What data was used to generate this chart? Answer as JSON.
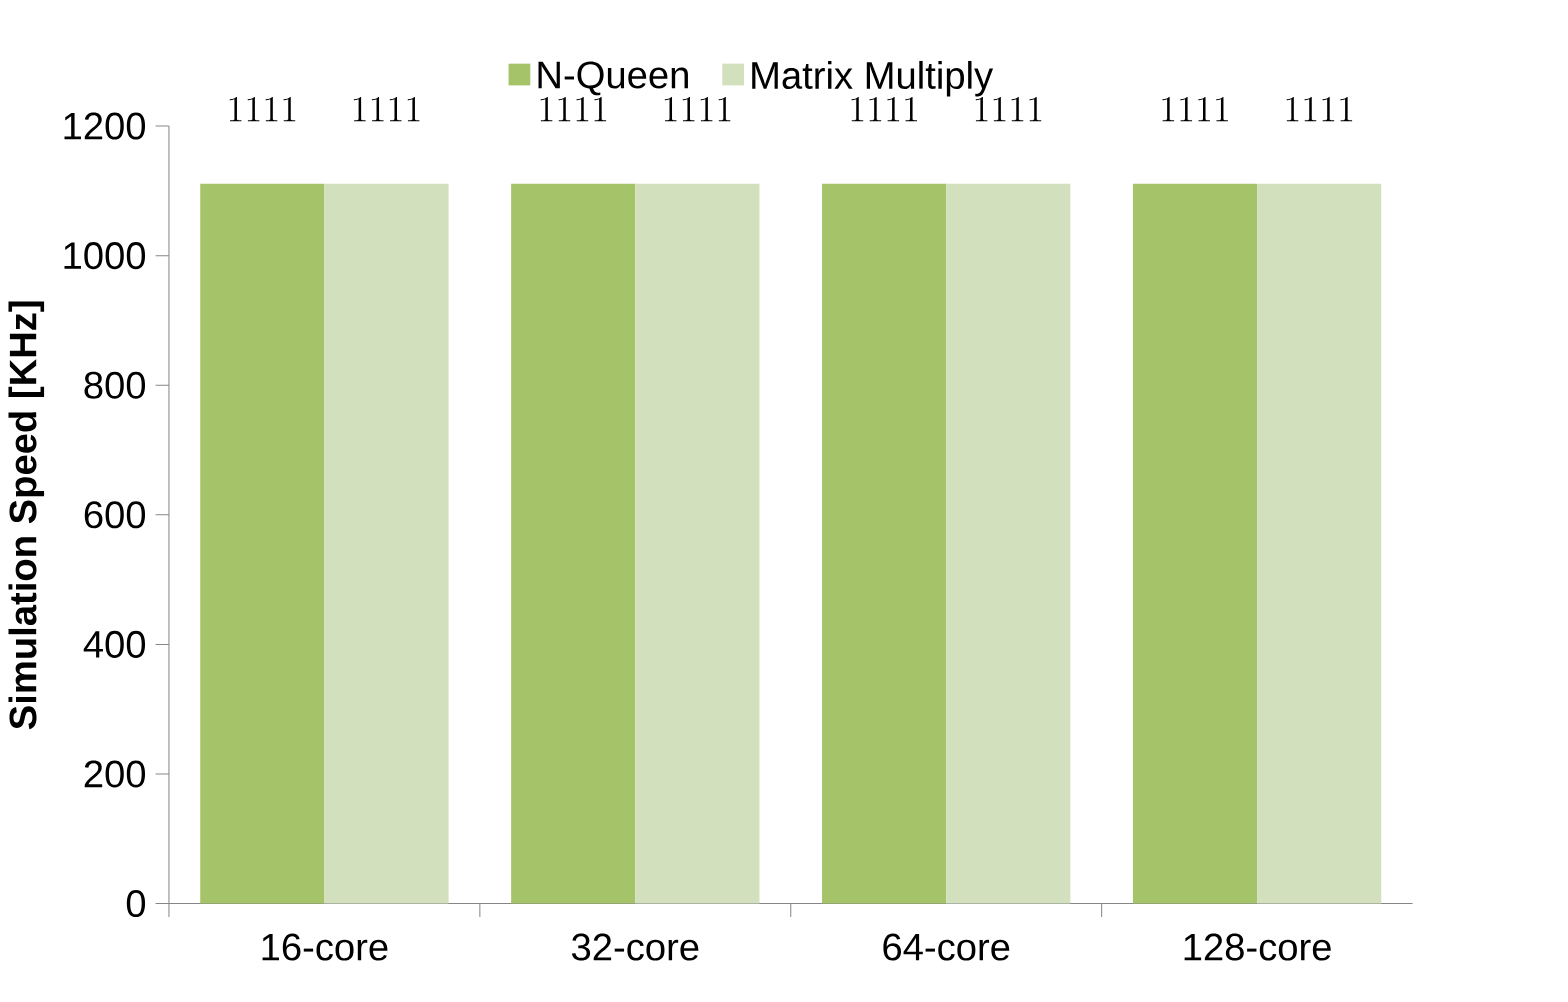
{
  "chart_data": {
    "type": "bar",
    "ylabel": "Simulation Speed [KHz]",
    "categories": [
      "16-core",
      "32-core",
      "64-core",
      "128-core"
    ],
    "series": [
      {
        "name": "N-Queen",
        "color": "#a5c469",
        "values": [
          1111,
          1111,
          1111,
          1111
        ]
      },
      {
        "name": "Matrix Multiply",
        "color": "#d3e0bd",
        "values": [
          1111,
          1111,
          1111,
          1111
        ]
      }
    ],
    "ylim": [
      0,
      1200
    ],
    "yticks": [
      0,
      200,
      400,
      600,
      800,
      1000,
      1200
    ],
    "legend": "top",
    "data_labels": true
  }
}
